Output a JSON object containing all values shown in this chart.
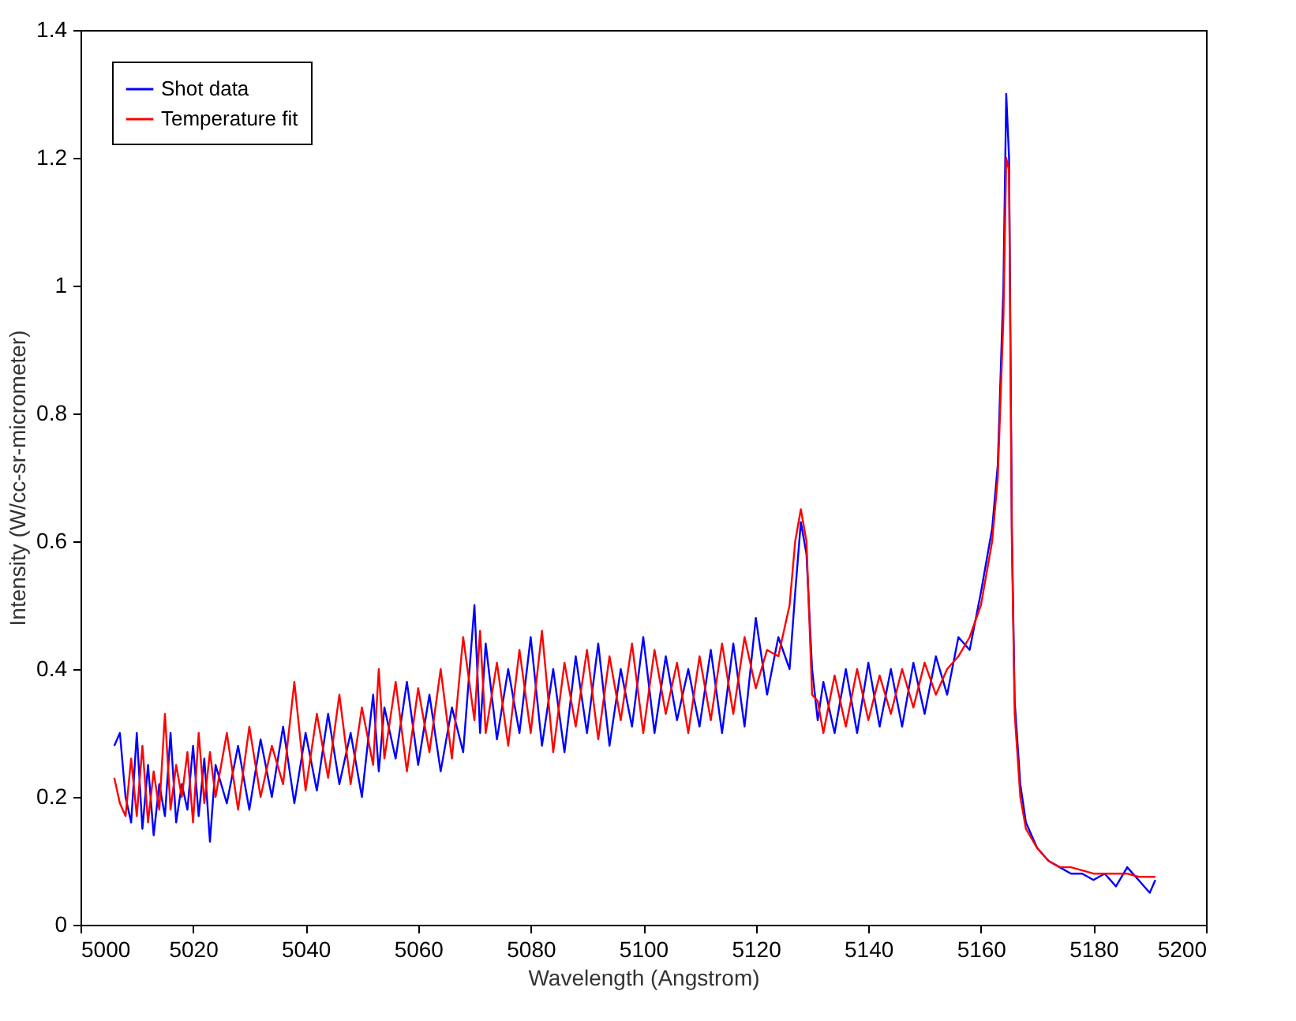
{
  "chart_data": {
    "type": "line",
    "xlabel": "Wavelength (Angstrom)",
    "ylabel": "Intensity (W/cc-sr-micrometer)",
    "xlim": [
      5000,
      5200
    ],
    "ylim": [
      0,
      1.4
    ],
    "xticks": [
      5000,
      5020,
      5040,
      5060,
      5080,
      5100,
      5120,
      5140,
      5160,
      5180,
      5200
    ],
    "yticks": [
      0,
      0.2,
      0.4,
      0.6,
      0.8,
      1,
      1.2,
      1.4
    ],
    "grid": false,
    "legend": "top left",
    "series": [
      {
        "name": "Shot data",
        "color": "#0000ff",
        "x": [
          5006,
          5007,
          5008,
          5009,
          5010,
          5011,
          5012,
          5013,
          5014,
          5015,
          5016,
          5017,
          5018,
          5019,
          5020,
          5021,
          5022,
          5023,
          5024,
          5026,
          5028,
          5030,
          5032,
          5034,
          5036,
          5038,
          5040,
          5042,
          5044,
          5046,
          5048,
          5050,
          5052,
          5053,
          5054,
          5056,
          5058,
          5060,
          5062,
          5064,
          5066,
          5068,
          5070,
          5071,
          5072,
          5074,
          5076,
          5078,
          5080,
          5082,
          5084,
          5086,
          5088,
          5090,
          5092,
          5094,
          5096,
          5098,
          5100,
          5102,
          5104,
          5106,
          5108,
          5110,
          5112,
          5114,
          5116,
          5118,
          5120,
          5122,
          5124,
          5126,
          5127,
          5128,
          5129,
          5130,
          5131,
          5132,
          5134,
          5136,
          5138,
          5140,
          5142,
          5144,
          5146,
          5148,
          5150,
          5152,
          5154,
          5156,
          5158,
          5160,
          5161,
          5162,
          5163,
          5164,
          5164.5,
          5165,
          5165.5,
          5166,
          5167,
          5168,
          5170,
          5172,
          5174,
          5176,
          5178,
          5180,
          5182,
          5184,
          5186,
          5188,
          5190,
          5191
        ],
        "values": [
          0.28,
          0.3,
          0.2,
          0.16,
          0.3,
          0.15,
          0.25,
          0.14,
          0.22,
          0.17,
          0.3,
          0.16,
          0.22,
          0.18,
          0.28,
          0.17,
          0.26,
          0.13,
          0.25,
          0.19,
          0.28,
          0.18,
          0.29,
          0.2,
          0.31,
          0.19,
          0.3,
          0.21,
          0.33,
          0.22,
          0.3,
          0.2,
          0.36,
          0.24,
          0.34,
          0.26,
          0.38,
          0.25,
          0.36,
          0.24,
          0.34,
          0.27,
          0.5,
          0.3,
          0.44,
          0.29,
          0.4,
          0.3,
          0.45,
          0.28,
          0.4,
          0.27,
          0.42,
          0.3,
          0.44,
          0.28,
          0.4,
          0.31,
          0.45,
          0.3,
          0.42,
          0.32,
          0.4,
          0.31,
          0.43,
          0.3,
          0.44,
          0.31,
          0.48,
          0.36,
          0.45,
          0.4,
          0.52,
          0.63,
          0.58,
          0.4,
          0.32,
          0.38,
          0.3,
          0.4,
          0.3,
          0.41,
          0.31,
          0.4,
          0.31,
          0.41,
          0.33,
          0.42,
          0.36,
          0.45,
          0.43,
          0.52,
          0.57,
          0.62,
          0.72,
          1,
          1.3,
          1.2,
          0.62,
          0.35,
          0.22,
          0.16,
          0.12,
          0.1,
          0.09,
          0.08,
          0.08,
          0.07,
          0.08,
          0.06,
          0.09,
          0.07,
          0.05,
          0.07
        ]
      },
      {
        "name": "Temperature fit",
        "color": "#ff0000",
        "x": [
          5006,
          5007,
          5008,
          5009,
          5010,
          5011,
          5012,
          5013,
          5014,
          5015,
          5016,
          5017,
          5018,
          5019,
          5020,
          5021,
          5022,
          5023,
          5024,
          5026,
          5028,
          5030,
          5032,
          5034,
          5036,
          5038,
          5040,
          5042,
          5044,
          5046,
          5048,
          5050,
          5052,
          5053,
          5054,
          5056,
          5058,
          5060,
          5062,
          5064,
          5066,
          5068,
          5070,
          5071,
          5072,
          5074,
          5076,
          5078,
          5080,
          5082,
          5084,
          5086,
          5088,
          5090,
          5092,
          5094,
          5096,
          5098,
          5100,
          5102,
          5104,
          5106,
          5108,
          5110,
          5112,
          5114,
          5116,
          5118,
          5120,
          5122,
          5124,
          5126,
          5127,
          5128,
          5129,
          5130,
          5131,
          5132,
          5134,
          5136,
          5138,
          5140,
          5142,
          5144,
          5146,
          5148,
          5150,
          5152,
          5154,
          5156,
          5158,
          5160,
          5161,
          5162,
          5163,
          5164,
          5164.5,
          5165,
          5165.5,
          5166,
          5167,
          5168,
          5170,
          5172,
          5174,
          5176,
          5178,
          5180,
          5182,
          5184,
          5186,
          5188,
          5190,
          5191
        ],
        "values": [
          0.23,
          0.19,
          0.17,
          0.26,
          0.17,
          0.28,
          0.16,
          0.24,
          0.18,
          0.33,
          0.18,
          0.25,
          0.2,
          0.27,
          0.16,
          0.3,
          0.19,
          0.27,
          0.2,
          0.3,
          0.18,
          0.31,
          0.2,
          0.28,
          0.22,
          0.38,
          0.21,
          0.33,
          0.23,
          0.36,
          0.22,
          0.34,
          0.25,
          0.4,
          0.26,
          0.38,
          0.24,
          0.37,
          0.27,
          0.4,
          0.26,
          0.45,
          0.32,
          0.46,
          0.3,
          0.41,
          0.28,
          0.43,
          0.3,
          0.46,
          0.27,
          0.41,
          0.31,
          0.43,
          0.29,
          0.42,
          0.32,
          0.44,
          0.3,
          0.43,
          0.33,
          0.41,
          0.3,
          0.42,
          0.32,
          0.44,
          0.33,
          0.45,
          0.37,
          0.43,
          0.42,
          0.5,
          0.6,
          0.65,
          0.6,
          0.36,
          0.35,
          0.3,
          0.39,
          0.31,
          0.4,
          0.32,
          0.39,
          0.33,
          0.4,
          0.34,
          0.41,
          0.36,
          0.4,
          0.42,
          0.45,
          0.5,
          0.55,
          0.6,
          0.7,
          0.95,
          1.2,
          1.18,
          0.6,
          0.33,
          0.2,
          0.15,
          0.12,
          0.1,
          0.09,
          0.09,
          0.085,
          0.08,
          0.08,
          0.08,
          0.08,
          0.075,
          0.075,
          0.075
        ]
      }
    ]
  }
}
